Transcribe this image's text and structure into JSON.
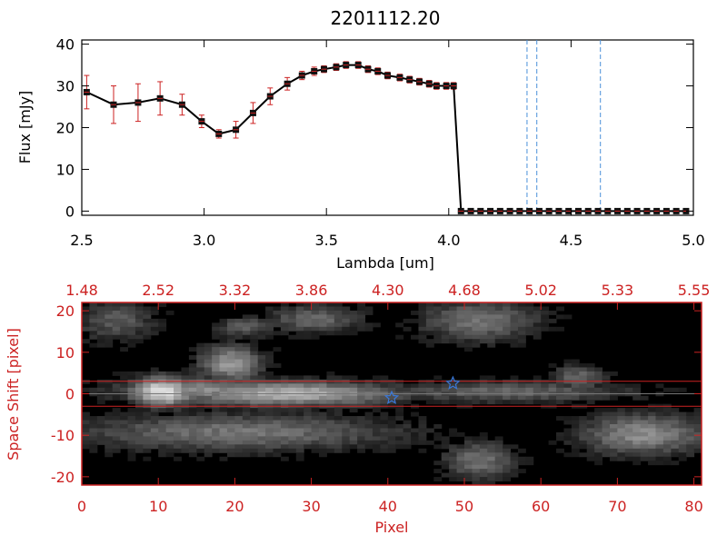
{
  "title": "2201112.20",
  "colors": {
    "axis": "#000000",
    "spec_line": "#000000",
    "errorbar": "#cc2222",
    "marker": "#111111",
    "vline": "#4a90d9",
    "bottom_axis": "#cc2222",
    "band": "#cc2222",
    "star": "#3a78d8"
  },
  "chart_data": [
    {
      "type": "line",
      "title": "2201112.20",
      "xlabel": "Lambda [um]",
      "ylabel": "Flux [mJy]",
      "xlim": [
        2.5,
        5.0
      ],
      "ylim": [
        -1,
        41
      ],
      "xticks": [
        "2.5",
        "3.0",
        "3.5",
        "4.0",
        "4.5",
        "5.0"
      ],
      "xtick_values": [
        2.5,
        3.0,
        3.5,
        4.0,
        4.5,
        5.0
      ],
      "yticks": [
        "0",
        "10",
        "20",
        "30",
        "40"
      ],
      "ytick_values": [
        0,
        10,
        20,
        30,
        40
      ],
      "grid": false,
      "vlines": [
        4.32,
        4.36,
        4.62
      ],
      "series": [
        {
          "x": [
            2.52,
            2.63,
            2.73,
            2.82,
            2.91,
            2.99,
            3.06,
            3.13,
            3.2,
            3.27,
            3.34,
            3.4,
            3.45,
            3.49,
            3.54,
            3.58,
            3.63,
            3.67,
            3.71,
            3.75,
            3.8,
            3.84,
            3.88,
            3.92,
            3.95,
            3.99,
            4.02,
            4.05,
            4.09,
            4.13,
            4.17,
            4.21,
            4.25,
            4.29,
            4.33,
            4.37,
            4.41,
            4.45,
            4.49,
            4.53,
            4.57,
            4.61,
            4.65,
            4.69,
            4.73,
            4.77,
            4.81,
            4.85,
            4.89,
            4.93,
            4.97
          ],
          "y": [
            28.5,
            25.5,
            26.0,
            27.0,
            25.5,
            21.5,
            18.5,
            19.5,
            23.5,
            27.5,
            30.5,
            32.5,
            33.5,
            34.0,
            34.5,
            35.0,
            35.0,
            34.0,
            33.5,
            32.5,
            32.0,
            31.5,
            31.0,
            30.5,
            30.0,
            30.0,
            30.0,
            0.0,
            0.0,
            0.0,
            0.0,
            0.0,
            0.0,
            0.0,
            0.0,
            0.0,
            0.0,
            0.0,
            0.0,
            0.0,
            0.0,
            0.0,
            0.0,
            0.0,
            0.0,
            0.0,
            0.0,
            0.0,
            0.0,
            0.0,
            0.0
          ],
          "yerr": [
            4.0,
            4.5,
            4.5,
            4.0,
            2.5,
            1.5,
            1.0,
            2.0,
            2.5,
            2.0,
            1.5,
            1.0,
            1.0,
            0.8,
            0.8,
            0.8,
            0.8,
            0.8,
            0.8,
            0.8,
            0.8,
            0.8,
            0.8,
            0.8,
            0.8,
            0.8,
            0.8,
            0.0,
            0.0,
            0.0,
            0.0,
            0.0,
            0.0,
            0.0,
            0.0,
            0.0,
            0.0,
            0.0,
            0.0,
            0.0,
            0.0,
            0.0,
            0.0,
            0.0,
            0.0,
            0.0,
            0.0,
            0.0,
            0.0,
            0.0,
            0.0
          ]
        }
      ]
    },
    {
      "type": "heatmap",
      "xlabel": "Pixel",
      "ylabel": "Space Shift [pixel]",
      "xlim": [
        0,
        81
      ],
      "ylim": [
        -22,
        22
      ],
      "xticks": [
        "0",
        "10",
        "20",
        "30",
        "40",
        "50",
        "60",
        "70",
        "80"
      ],
      "xtick_values": [
        0,
        10,
        20,
        30,
        40,
        50,
        60,
        70,
        80
      ],
      "yticks": [
        "-20",
        "-10",
        "0",
        "10",
        "20"
      ],
      "ytick_values": [
        -20,
        -10,
        0,
        10,
        20
      ],
      "top_ticks": [
        "1.48",
        "2.52",
        "3.32",
        "3.86",
        "4.30",
        "4.68",
        "5.02",
        "5.33",
        "5.55"
      ],
      "top_tick_values": [
        0,
        10,
        20,
        30,
        40,
        50,
        60,
        70,
        80
      ],
      "band": [
        -3,
        3
      ],
      "stars": [
        [
          40.5,
          -1
        ],
        [
          48.5,
          2.5
        ]
      ],
      "blobs": [
        {
          "x": [
            5,
            25
          ],
          "y": [
            -1,
            3
          ],
          "peak": 0.55
        },
        {
          "x": [
            7,
            13
          ],
          "y": [
            -2,
            3
          ],
          "peak": 0.9
        },
        {
          "x": [
            13,
            40
          ],
          "y": [
            -2,
            2
          ],
          "peak": 0.7
        },
        {
          "x": [
            40,
            70
          ],
          "y": [
            -1,
            2
          ],
          "peak": 0.4
        },
        {
          "x": [
            0,
            40
          ],
          "y": [
            -13,
            -6
          ],
          "peak": 0.45
        },
        {
          "x": [
            18,
            24
          ],
          "y": [
            15,
            18
          ],
          "peak": 0.35
        },
        {
          "x": [
            16,
            22
          ],
          "y": [
            4,
            11
          ],
          "peak": 0.6
        },
        {
          "x": [
            25,
            35
          ],
          "y": [
            16,
            21
          ],
          "peak": 0.4
        },
        {
          "x": [
            45,
            58
          ],
          "y": [
            14,
            22
          ],
          "peak": 0.45
        },
        {
          "x": [
            48,
            55
          ],
          "y": [
            -20,
            -13
          ],
          "peak": 0.45
        },
        {
          "x": [
            66,
            80
          ],
          "y": [
            -14,
            -6
          ],
          "peak": 0.55
        },
        {
          "x": [
            62,
            67
          ],
          "y": [
            2,
            6
          ],
          "peak": 0.4
        },
        {
          "x": [
            0,
            8
          ],
          "y": [
            14,
            22
          ],
          "peak": 0.35
        }
      ]
    }
  ]
}
